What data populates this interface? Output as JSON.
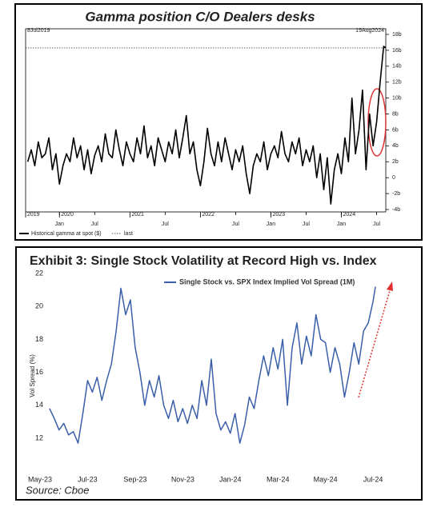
{
  "chart_data": [
    {
      "type": "line",
      "title": "Gamma position C/O Dealers desks",
      "start_label": "8Jul2019",
      "end_label": "19Aug2024",
      "xlim": [
        2019.52,
        2024.63
      ],
      "ylim": [
        -4,
        18
      ],
      "axis_side": "right",
      "yticks": [
        {
          "value": 18,
          "label": "18b"
        },
        {
          "value": 16,
          "label": "16b"
        },
        {
          "value": 14,
          "label": "14b"
        },
        {
          "value": 12,
          "label": "12b"
        },
        {
          "value": 10,
          "label": "10b"
        },
        {
          "value": 8,
          "label": "8b"
        },
        {
          "value": 6,
          "label": "6b"
        },
        {
          "value": 4,
          "label": "4b"
        },
        {
          "value": 2,
          "label": "2b"
        },
        0,
        {
          "value": -2,
          "label": "-2b"
        },
        {
          "value": -4,
          "label": "-4b"
        }
      ],
      "xticks": [
        {
          "value": 2020,
          "label": "Jan"
        },
        {
          "value": 2020.5,
          "label": "Jul"
        },
        {
          "value": 2021.5,
          "label": "Jul"
        },
        {
          "value": 2022.5,
          "label": "Jul"
        },
        {
          "value": 2023,
          "label": "Jan"
        },
        {
          "value": 2023.5,
          "label": "Jul"
        },
        {
          "value": 2024,
          "label": "Jan"
        },
        {
          "value": 2024.5,
          "label": "Jul"
        }
      ],
      "year_ticks": [
        {
          "value": 2019.52,
          "label": "2019"
        },
        2020,
        2021,
        2022,
        2023,
        2024
      ],
      "x": [
        2019.55,
        2019.6,
        2019.65,
        2019.7,
        2019.75,
        2019.8,
        2019.85,
        2019.9,
        2019.95,
        2020,
        2020.05,
        2020.1,
        2020.15,
        2020.2,
        2020.25,
        2020.3,
        2020.35,
        2020.4,
        2020.45,
        2020.5,
        2020.55,
        2020.6,
        2020.65,
        2020.7,
        2020.75,
        2020.8,
        2020.85,
        2020.9,
        2020.95,
        2021,
        2021.05,
        2021.1,
        2021.15,
        2021.2,
        2021.25,
        2021.3,
        2021.35,
        2021.4,
        2021.45,
        2021.5,
        2021.55,
        2021.6,
        2021.65,
        2021.7,
        2021.75,
        2021.8,
        2021.85,
        2021.9,
        2021.95,
        2022,
        2022.05,
        2022.1,
        2022.15,
        2022.2,
        2022.25,
        2022.3,
        2022.35,
        2022.4,
        2022.45,
        2022.5,
        2022.55,
        2022.6,
        2022.65,
        2022.7,
        2022.75,
        2022.8,
        2022.85,
        2022.9,
        2022.95,
        2023,
        2023.05,
        2023.1,
        2023.15,
        2023.2,
        2023.25,
        2023.3,
        2023.35,
        2023.4,
        2023.45,
        2023.5,
        2023.55,
        2023.6,
        2023.65,
        2023.7,
        2023.75,
        2023.8,
        2023.85,
        2023.9,
        2023.95,
        2024,
        2024.05,
        2024.1,
        2024.15,
        2024.2,
        2024.25,
        2024.3,
        2024.35,
        2024.4,
        2024.45,
        2024.5,
        2024.55,
        2024.6,
        2024.63
      ],
      "series": [
        {
          "name": "Historical gamma at spot ($)",
          "color": "#000000",
          "values": [
            2,
            3.5,
            1.5,
            4.5,
            2.5,
            3,
            5,
            1,
            3,
            -0.8,
            1.5,
            3,
            2,
            5,
            2.5,
            4,
            1,
            3.5,
            0.5,
            2.8,
            4,
            2,
            5.5,
            3,
            2.5,
            6,
            3.5,
            1.5,
            4.5,
            3,
            2,
            5,
            3,
            6.5,
            2.5,
            4,
            1.5,
            5,
            3.5,
            2,
            4.5,
            3,
            6,
            2.5,
            5,
            7.8,
            3,
            4.5,
            1,
            -1,
            2,
            6.2,
            3,
            1.5,
            4.5,
            2,
            5,
            3,
            1,
            3.5,
            2,
            4,
            0.5,
            -2,
            1.5,
            3,
            2,
            4.5,
            1,
            3,
            4,
            2.5,
            5.8,
            3,
            2,
            4.5,
            3,
            5,
            1.5,
            3.5,
            2,
            4,
            0,
            3,
            -1.5,
            2.5,
            -3.3,
            1,
            3,
            0.5,
            5,
            2,
            10,
            3,
            6,
            11,
            1,
            8,
            4,
            7,
            12,
            16.5,
            16.3
          ]
        }
      ],
      "reference": {
        "name": "last",
        "value": 16.3,
        "color": "#555555"
      }
    },
    {
      "type": "line",
      "title": "Exhibit 3: Single Stock Volatility at Record High vs. Index",
      "y_label": "Vol Spread (%)",
      "xlim": [
        0,
        14.3
      ],
      "ylim": [
        12,
        22
      ],
      "yticks": [
        12,
        14,
        16,
        18,
        20,
        22
      ],
      "xticks": [
        {
          "value": 0,
          "label": "May-23"
        },
        {
          "value": 2,
          "label": "Jul-23"
        },
        {
          "value": 4,
          "label": "Sep-23"
        },
        {
          "value": 6,
          "label": "Nov-23"
        },
        {
          "value": 8,
          "label": "Jan-24"
        },
        {
          "value": 10,
          "label": "Mar-24"
        },
        {
          "value": 12,
          "label": "May-24"
        },
        {
          "value": 14,
          "label": "Jul-24"
        }
      ],
      "x": [
        0.4,
        0.6,
        0.8,
        1,
        1.2,
        1.4,
        1.6,
        1.8,
        2,
        2.2,
        2.4,
        2.6,
        2.8,
        3,
        3.2,
        3.4,
        3.6,
        3.8,
        4,
        4.2,
        4.4,
        4.6,
        4.8,
        5,
        5.2,
        5.4,
        5.6,
        5.8,
        6,
        6.2,
        6.4,
        6.6,
        6.8,
        7,
        7.2,
        7.4,
        7.6,
        7.8,
        8,
        8.2,
        8.4,
        8.6,
        8.8,
        9,
        9.2,
        9.4,
        9.6,
        9.8,
        10,
        10.2,
        10.4,
        10.6,
        10.8,
        11,
        11.2,
        11.4,
        11.6,
        11.8,
        12,
        12.2,
        12.4,
        12.6,
        12.8,
        13,
        13.2,
        13.4,
        13.6,
        13.8,
        14,
        14.1
      ],
      "series": [
        {
          "name": "Single Stock vs. SPX Index Implied Vol Spread (1M)",
          "color": "#3a5fa8",
          "values": [
            13.8,
            13.2,
            12.5,
            12.9,
            12.2,
            12.4,
            11.7,
            13.5,
            15.5,
            14.8,
            15.7,
            14.3,
            15.5,
            16.5,
            18.5,
            21.1,
            19.5,
            20.4,
            17.5,
            16,
            14,
            15.5,
            14.5,
            15.8,
            14,
            13.2,
            14.3,
            13,
            13.8,
            12.9,
            14,
            13.2,
            15.5,
            14,
            16.8,
            13.5,
            12.5,
            13,
            12.3,
            13.5,
            11.7,
            12.8,
            14.5,
            13.8,
            15.5,
            17,
            15.8,
            17.5,
            16.2,
            18,
            14,
            17.5,
            19,
            16.5,
            18.2,
            17,
            19.5,
            18,
            17.8,
            16,
            17.5,
            16.5,
            14.5,
            16,
            17.8,
            16.5,
            18.5,
            19,
            20.3,
            21.2
          ]
        }
      ]
    }
  ],
  "source": "Source: Cboe"
}
